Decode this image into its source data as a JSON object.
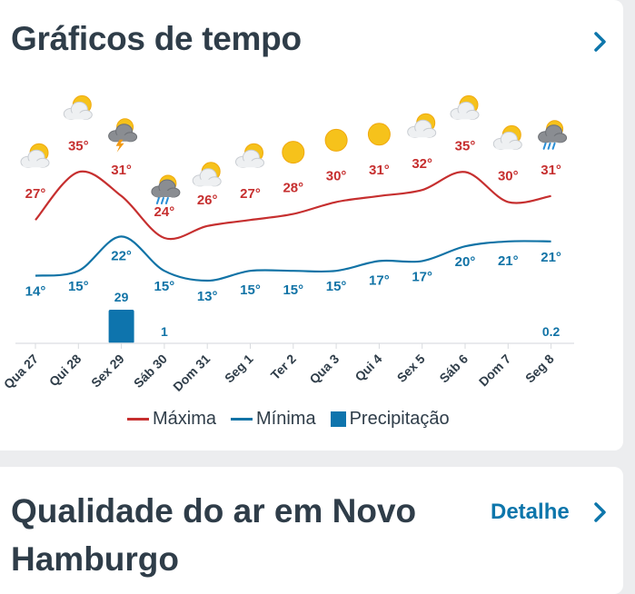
{
  "charts_card": {
    "title": "Gráficos de tempo"
  },
  "air_card": {
    "title": "Qualidade do ar em Novo Hamburgo",
    "detail_label": "Detalhe"
  },
  "colors": {
    "max": "#c62f2f",
    "min": "#1173a6",
    "precip": "#0e74ad",
    "text": "#2f3d49"
  },
  "chart_data": {
    "type": "line",
    "categories": [
      "Qua 27",
      "Qui 28",
      "Sex 29",
      "Sáb 30",
      "Dom 31",
      "Seg 1",
      "Ter 2",
      "Qua 3",
      "Qui 4",
      "Sex 5",
      "Sáb 6",
      "Dom 7",
      "Seg 8"
    ],
    "icons": [
      "sun-cloud-icon",
      "sun-cloud-icon",
      "thunderstorm-icon",
      "sun-rain-icon",
      "sun-cloud-icon",
      "sun-cloud-icon",
      "sun-icon",
      "sun-icon",
      "sun-icon",
      "sun-cloud-icon",
      "sun-cloud-icon",
      "sun-cloud-icon",
      "sun-rain-icon"
    ],
    "series": [
      {
        "name": "Máxima",
        "values": [
          27,
          35,
          31,
          24,
          26,
          27,
          28,
          30,
          31,
          32,
          35,
          30,
          31
        ],
        "labels": [
          "27°",
          "35°",
          "31°",
          "24°",
          "26°",
          "27°",
          "28°",
          "30°",
          "31°",
          "32°",
          "35°",
          "30°",
          "31°"
        ]
      },
      {
        "name": "Mínima",
        "values": [
          14,
          15,
          22,
          15,
          13,
          15,
          15,
          15,
          17,
          17,
          20,
          21,
          21
        ],
        "labels": [
          "14°",
          "15°",
          "22°",
          "15°",
          "13°",
          "15°",
          "15°",
          "15°",
          "17°",
          "17°",
          "20°",
          "21°",
          "21°"
        ]
      }
    ],
    "precipitation": {
      "name": "Precipitação",
      "values": [
        0,
        0,
        29,
        1,
        0,
        0,
        0,
        0,
        0,
        0,
        0,
        0,
        0.2
      ],
      "labels": [
        "",
        "",
        "29",
        "1",
        "",
        "",
        "",
        "",
        "",
        "",
        "",
        "",
        "0.2"
      ]
    },
    "legend": [
      "Máxima",
      "Mínima",
      "Precipitação"
    ]
  }
}
